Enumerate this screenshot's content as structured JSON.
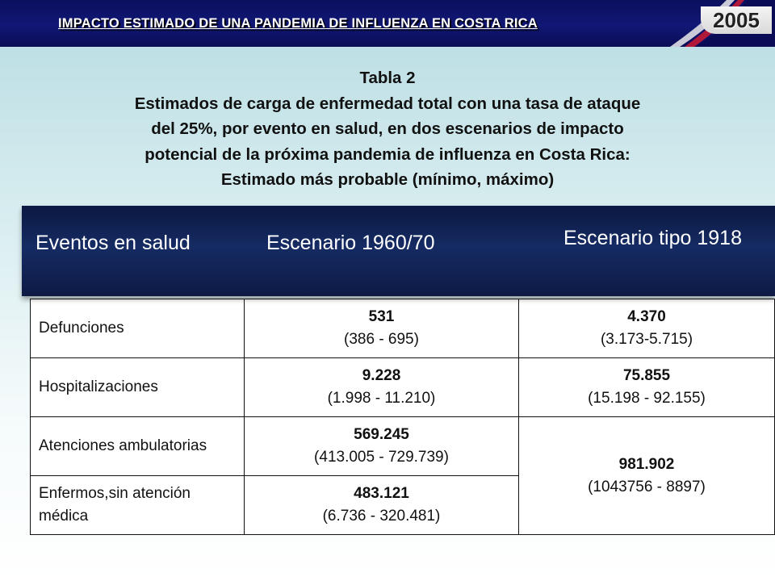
{
  "header": {
    "title": "IMPACTO ESTIMADO DE UNA PANDEMIA DE INFLUENZA EN COSTA RICA",
    "year": "2005"
  },
  "caption": {
    "line1": "Tabla 2",
    "line2": "Estimados de carga de enfermedad total con una tasa de ataque",
    "line3": "del 25%, por evento en salud, en dos escenarios de impacto",
    "line4": "potencial de la próxima pandemia de influenza en Costa Rica:",
    "line5": "Estimado más probable (mínimo, máximo)"
  },
  "table": {
    "headers": [
      "Eventos en salud",
      "Escenario 1960/70",
      "Escenario tipo 1918"
    ],
    "rows": [
      {
        "label": "Defunciones",
        "s1_main": "531",
        "s1_range": "(386 - 695)",
        "s2_main": "4.370",
        "s2_range": "(3.173-5.715)"
      },
      {
        "label": "Hospitalizaciones",
        "s1_main": "9.228",
        "s1_range": "(1.998 - 11.210)",
        "s2_main": "75.855",
        "s2_range": "(15.198 - 92.155)"
      },
      {
        "label": "Atenciones ambulatorias",
        "s1_main": "569.245",
        "s1_range": "(413.005 - 729.739)",
        "s2_main": "981.902",
        "s2_range": "(1043756 - 8897)"
      },
      {
        "label": "Enfermos,sin atención médica",
        "s1_main": "483.121",
        "s1_range": "(6.736 - 320.481)"
      }
    ]
  },
  "colors": {
    "header_bar": "#111775",
    "table_header": "#152b63",
    "background": "#c9e5e9"
  }
}
